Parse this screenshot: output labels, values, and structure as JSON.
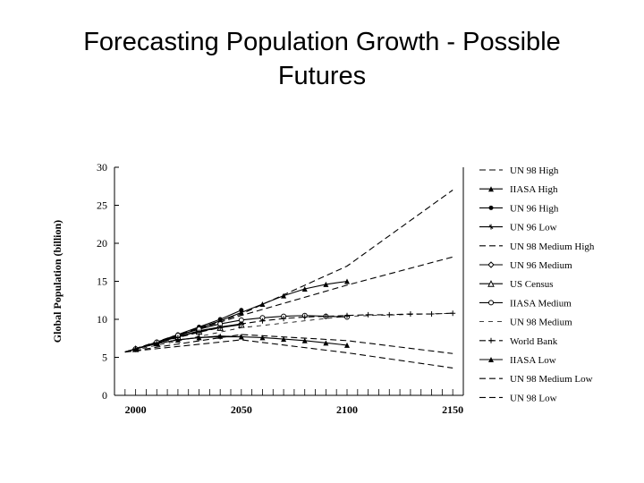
{
  "slide": {
    "title_line1": "Forecasting Population Growth - Possible",
    "title_line2": "Futures"
  },
  "chart_data": {
    "type": "line",
    "title": "",
    "xlabel": "",
    "ylabel": "Global Population (billion)",
    "xlim": [
      1990,
      2155
    ],
    "ylim": [
      0,
      30
    ],
    "x_ticks": [
      2000,
      2050,
      2100,
      2150
    ],
    "y_ticks": [
      0,
      5,
      10,
      15,
      20,
      25,
      30
    ],
    "grid": false,
    "legend_position": "right",
    "line_color": "#000000",
    "series": [
      {
        "name": "UN 98 High",
        "style": "dashed",
        "marker": "none",
        "x": [
          1995,
          2050,
          2100,
          2150
        ],
        "y": [
          5.7,
          10.7,
          17.0,
          27.0
        ]
      },
      {
        "name": "IIASA High",
        "style": "solid",
        "marker": "triangle",
        "x": [
          1995,
          2000,
          2010,
          2020,
          2030,
          2040,
          2050,
          2060,
          2070,
          2080,
          2090,
          2100
        ],
        "y": [
          5.7,
          6.1,
          6.9,
          7.8,
          8.8,
          9.8,
          10.9,
          12.0,
          13.1,
          14.0,
          14.6,
          15.0
        ]
      },
      {
        "name": "UN 96 High",
        "style": "solid",
        "marker": "circle",
        "x": [
          1995,
          2000,
          2010,
          2020,
          2030,
          2040,
          2050
        ],
        "y": [
          5.7,
          6.1,
          7.0,
          8.0,
          9.0,
          10.0,
          11.2
        ]
      },
      {
        "name": "UN 96 Low",
        "style": "solid",
        "marker": "cross",
        "x": [
          1995,
          2000,
          2010,
          2020,
          2030,
          2040,
          2050
        ],
        "y": [
          5.7,
          6.1,
          6.8,
          7.3,
          7.6,
          7.7,
          7.7
        ]
      },
      {
        "name": "UN 98 Medium High",
        "style": "dashed",
        "marker": "none",
        "x": [
          1995,
          2050,
          2100,
          2150
        ],
        "y": [
          5.7,
          10.5,
          14.5,
          18.2
        ]
      },
      {
        "name": "UN 96 Medium",
        "style": "solid",
        "marker": "diamond",
        "x": [
          1995,
          2000,
          2010,
          2020,
          2030,
          2040,
          2050
        ],
        "y": [
          5.7,
          6.1,
          6.9,
          7.7,
          8.5,
          9.0,
          9.4
        ]
      },
      {
        "name": "US Census",
        "style": "solid",
        "marker": "triangle-open",
        "x": [
          1995,
          2000,
          2010,
          2020,
          2030,
          2040,
          2050
        ],
        "y": [
          5.7,
          6.1,
          6.9,
          7.7,
          8.4,
          8.9,
          9.3
        ]
      },
      {
        "name": "IIASA Medium",
        "style": "solid",
        "marker": "circle-open",
        "x": [
          1995,
          2000,
          2010,
          2020,
          2030,
          2040,
          2050,
          2060,
          2070,
          2080,
          2090,
          2100
        ],
        "y": [
          5.7,
          6.1,
          7.0,
          7.9,
          8.7,
          9.4,
          9.9,
          10.2,
          10.4,
          10.5,
          10.4,
          10.3
        ]
      },
      {
        "name": "UN 98 Medium",
        "style": "dashed-thin",
        "marker": "none",
        "x": [
          1995,
          2050,
          2100,
          2150
        ],
        "y": [
          5.7,
          8.9,
          10.4,
          10.8
        ]
      },
      {
        "name": "World Bank",
        "style": "dashed",
        "marker": "plus",
        "x": [
          1995,
          2000,
          2010,
          2020,
          2030,
          2040,
          2050,
          2060,
          2070,
          2080,
          2090,
          2100,
          2110,
          2120,
          2130,
          2140,
          2150
        ],
        "y": [
          5.7,
          6.1,
          6.9,
          7.6,
          8.3,
          8.9,
          9.4,
          9.8,
          10.1,
          10.3,
          10.4,
          10.5,
          10.6,
          10.6,
          10.7,
          10.7,
          10.8
        ]
      },
      {
        "name": "IIASA Low",
        "style": "solid",
        "marker": "triangle",
        "x": [
          1995,
          2000,
          2010,
          2020,
          2030,
          2040,
          2050,
          2060,
          2070,
          2080,
          2090,
          2100
        ],
        "y": [
          5.7,
          6.1,
          6.8,
          7.3,
          7.6,
          7.8,
          7.7,
          7.6,
          7.4,
          7.2,
          6.9,
          6.6
        ]
      },
      {
        "name": "UN 98 Medium Low",
        "style": "dashed",
        "marker": "none",
        "x": [
          1995,
          2050,
          2100,
          2150
        ],
        "y": [
          5.7,
          8.0,
          7.2,
          5.5
        ]
      },
      {
        "name": "UN 98 Low",
        "style": "dashed",
        "marker": "none",
        "x": [
          1995,
          2050,
          2100,
          2150
        ],
        "y": [
          5.7,
          7.3,
          5.6,
          3.6
        ]
      }
    ]
  }
}
